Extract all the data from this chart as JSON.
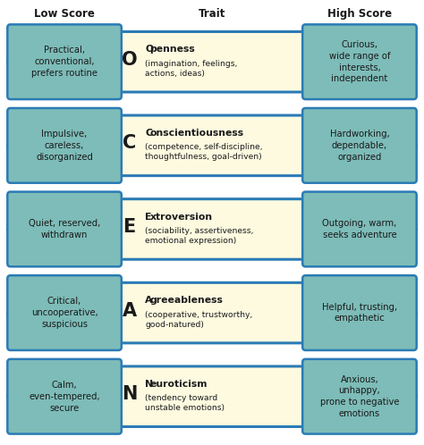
{
  "title_left": "Low Score",
  "title_center": "Trait",
  "title_right": "High Score",
  "bg_color": "#ffffff",
  "box_color": "#7dbcb8",
  "arrow_edge_color": "#2b7bb5",
  "arrow_fill": "#fdfae0",
  "box_edge_color": "#2b7bb5",
  "traits": [
    {
      "letter": "O",
      "trait_name": "Openness",
      "trait_desc": "(imagination, feelings,\nactions, ideas)",
      "low": "Practical,\nconventional,\nprefers routine",
      "high": "Curious,\nwide range of\ninterests,\nindependent"
    },
    {
      "letter": "C",
      "trait_name": "Conscientiousness",
      "trait_desc": "(competence, self-discipline,\nthoughtfulness, goal-driven)",
      "low": "Impulsive,\ncareless,\ndisorganized",
      "high": "Hardworking,\ndependable,\norganized"
    },
    {
      "letter": "E",
      "trait_name": "Extroversion",
      "trait_desc": "(sociability, assertiveness,\nemotional expression)",
      "low": "Quiet, reserved,\nwithdrawn",
      "high": "Outgoing, warm,\nseeks adventure"
    },
    {
      "letter": "A",
      "trait_name": "Agreeableness",
      "trait_desc": "(cooperative, trustworthy,\ngood-natured)",
      "low": "Critical,\nuncooperative,\nsuspicious",
      "high": "Helpful, trusting,\nempathetic"
    },
    {
      "letter": "N",
      "trait_name": "Neuroticism",
      "trait_desc": "(tendency toward\nunstable emotions)",
      "low": "Calm,\neven-tempered,\nsecure",
      "high": "Anxious,\nunhappy,\nprone to negative\nemotions"
    }
  ]
}
